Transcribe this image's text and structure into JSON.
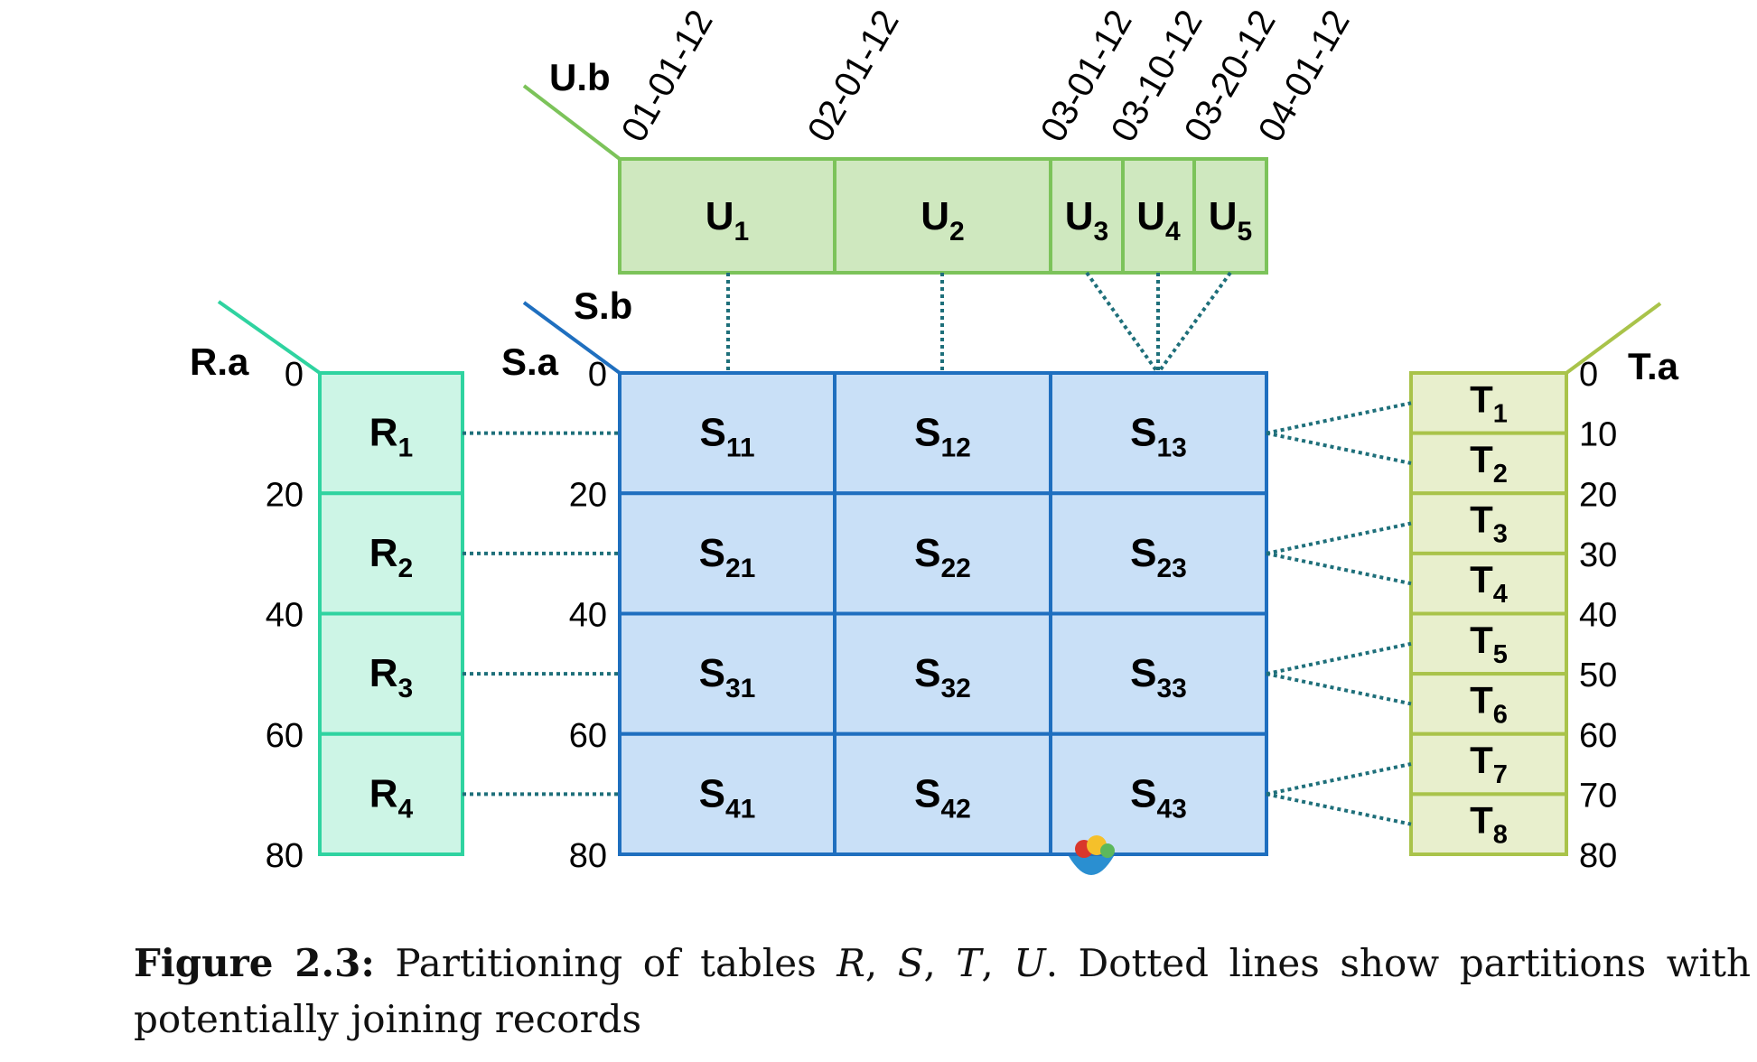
{
  "diagram": {
    "u_axis_label": "U.b",
    "s_b_label": "S.b",
    "s_a_label": "S.a",
    "r_axis_label": "R.a",
    "t_axis_label": "T.a",
    "u_ticks": [
      "01-01-12",
      "02-01-12",
      "03-01-12",
      "03-10-12",
      "03-20-12",
      "04-01-12"
    ],
    "u_partitions": [
      {
        "base": "U",
        "sub": "1"
      },
      {
        "base": "U",
        "sub": "2"
      },
      {
        "base": "U",
        "sub": "3"
      },
      {
        "base": "U",
        "sub": "4"
      },
      {
        "base": "U",
        "sub": "5"
      }
    ],
    "r_ticks": [
      "0",
      "20",
      "40",
      "60",
      "80"
    ],
    "r_partitions": [
      {
        "base": "R",
        "sub": "1"
      },
      {
        "base": "R",
        "sub": "2"
      },
      {
        "base": "R",
        "sub": "3"
      },
      {
        "base": "R",
        "sub": "4"
      }
    ],
    "s_ticks": [
      "0",
      "20",
      "40",
      "60",
      "80"
    ],
    "s_partitions": [
      [
        {
          "base": "S",
          "sub": "11"
        },
        {
          "base": "S",
          "sub": "12"
        },
        {
          "base": "S",
          "sub": "13"
        }
      ],
      [
        {
          "base": "S",
          "sub": "21"
        },
        {
          "base": "S",
          "sub": "22"
        },
        {
          "base": "S",
          "sub": "23"
        }
      ],
      [
        {
          "base": "S",
          "sub": "31"
        },
        {
          "base": "S",
          "sub": "32"
        },
        {
          "base": "S",
          "sub": "33"
        }
      ],
      [
        {
          "base": "S",
          "sub": "41"
        },
        {
          "base": "S",
          "sub": "42"
        },
        {
          "base": "S",
          "sub": "43"
        }
      ]
    ],
    "t_ticks": [
      "0",
      "10",
      "20",
      "30",
      "40",
      "50",
      "60",
      "70",
      "80"
    ],
    "t_partitions": [
      {
        "base": "T",
        "sub": "1"
      },
      {
        "base": "T",
        "sub": "2"
      },
      {
        "base": "T",
        "sub": "3"
      },
      {
        "base": "T",
        "sub": "4"
      },
      {
        "base": "T",
        "sub": "5"
      },
      {
        "base": "T",
        "sub": "6"
      },
      {
        "base": "T",
        "sub": "7"
      },
      {
        "base": "T",
        "sub": "8"
      }
    ],
    "colors": {
      "u_fill": "#cfe8bf",
      "u_stroke": "#7cc35a",
      "s_fill": "#c9e0f7",
      "s_stroke": "#1f6fbf",
      "r_fill": "#cdf5e6",
      "r_stroke": "#2fd3a0",
      "t_fill": "#e8efcd",
      "t_stroke": "#a9c34a",
      "dotted": "#1e6f7a"
    }
  },
  "caption": {
    "label": "Figure 2.3:",
    "text_before": " Partitioning of tables ",
    "r": "R",
    "s": "S",
    "t": "T",
    "u": "U",
    "text_after": ". Dotted lines show partitions with potentially joining records"
  }
}
